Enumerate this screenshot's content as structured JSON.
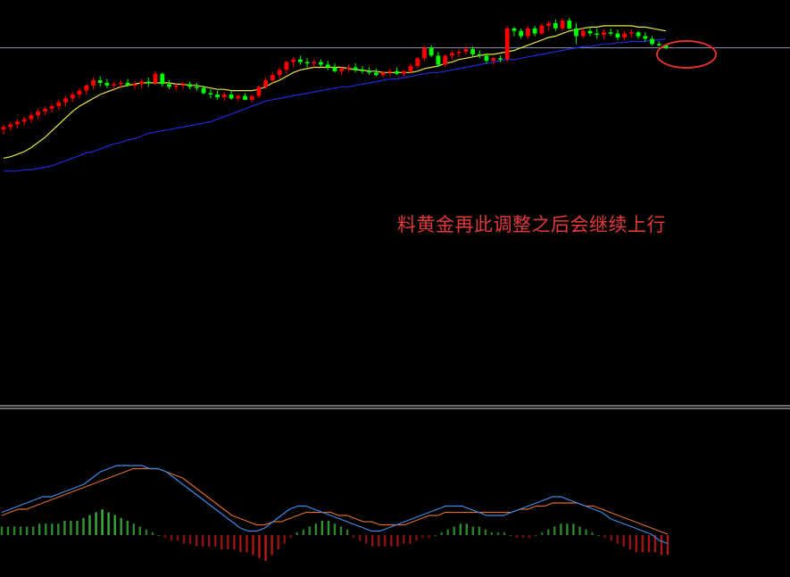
{
  "annotation": {
    "text": "料黄金再此调整之后会继续上行",
    "color": "#e23a3a"
  },
  "colors": {
    "background": "#000000",
    "up": "#ff0000",
    "down": "#00ff00",
    "ma_fast": "#e6e64c",
    "ma_slow": "#1f2bd6",
    "price_line": "#8c94b4",
    "divider": "#d8d8d8",
    "macd_dif": "#3d8ce8",
    "macd_dea": "#d86a2a",
    "hist_pos": "#3cb83c",
    "hist_neg": "#c01818",
    "highlight": "#e03030"
  },
  "chart_data": [
    {
      "type": "candlestick",
      "series": [
        {
          "name": "",
          "role": "candles",
          "ohlc": [
            [
              222,
              226,
              218,
              224
            ],
            [
              224,
              228,
              221,
              226
            ],
            [
              226,
              230,
              223,
              228
            ],
            [
              228,
              232,
              225,
              230
            ],
            [
              230,
              235,
              227,
              233
            ],
            [
              233,
              238,
              230,
              236
            ],
            [
              236,
              240,
              233,
              238
            ],
            [
              238,
              242,
              235,
              240
            ],
            [
              240,
              245,
              237,
              243
            ],
            [
              243,
              248,
              240,
              246
            ],
            [
              246,
              251,
              243,
              249
            ],
            [
              249,
              254,
              246,
              252
            ],
            [
              252,
              257,
              249,
              256
            ],
            [
              256,
              262,
              253,
              260
            ],
            [
              260,
              263,
              255,
              258
            ],
            [
              258,
              261,
              254,
              256
            ],
            [
              256,
              259,
              253,
              257
            ],
            [
              257,
              260,
              254,
              258
            ],
            [
              258,
              261,
              255,
              256
            ],
            [
              256,
              259,
              253,
              257
            ],
            [
              257,
              261,
              254,
              259
            ],
            [
              259,
              262,
              255,
              258
            ],
            [
              258,
              267,
              256,
              265
            ],
            [
              265,
              266,
              255,
              257
            ],
            [
              257,
              260,
              253,
              255
            ],
            [
              255,
              258,
              252,
              256
            ],
            [
              256,
              259,
              253,
              257
            ],
            [
              257,
              259,
              253,
              255
            ],
            [
              255,
              258,
              252,
              254
            ],
            [
              254,
              256,
              249,
              250
            ],
            [
              250,
              253,
              246,
              249
            ],
            [
              249,
              252,
              245,
              247
            ],
            [
              247,
              251,
              244,
              249
            ],
            [
              249,
              252,
              245,
              246
            ],
            [
              246,
              249,
              244,
              248
            ],
            [
              248,
              250,
              246,
              245
            ],
            [
              245,
              247,
              243,
              248
            ],
            [
              248,
              256,
              246,
              255
            ],
            [
              255,
              262,
              253,
              260
            ],
            [
              260,
              266,
              258,
              264
            ],
            [
              264,
              270,
              261,
              268
            ],
            [
              268,
              275,
              265,
              274
            ],
            [
              274,
              278,
              270,
              276
            ],
            [
              276,
              279,
              272,
              274
            ],
            [
              274,
              277,
              270,
              273
            ],
            [
              273,
              276,
              270,
              274
            ],
            [
              274,
              276,
              270,
              272
            ],
            [
              272,
              275,
              268,
              270
            ],
            [
              270,
              273,
              266,
              267
            ],
            [
              267,
              270,
              264,
              269
            ],
            [
              269,
              272,
              266,
              270
            ],
            [
              270,
              273,
              266,
              268
            ],
            [
              268,
              271,
              265,
              267
            ],
            [
              267,
              270,
              264,
              266
            ],
            [
              266,
              269,
              263,
              264
            ],
            [
              264,
              267,
              262,
              266
            ],
            [
              266,
              269,
              263,
              267
            ],
            [
              267,
              270,
              264,
              265
            ],
            [
              265,
              268,
              263,
              267
            ],
            [
              267,
              273,
              265,
              271
            ],
            [
              271,
              278,
              269,
              277
            ],
            [
              277,
              286,
              275,
              285
            ],
            [
              285,
              287,
              278,
              279
            ],
            [
              279,
              282,
              270,
              272
            ],
            [
              272,
              280,
              270,
              279
            ],
            [
              279,
              283,
              276,
              281
            ],
            [
              281,
              284,
              278,
              282
            ],
            [
              282,
              286,
              280,
              284
            ],
            [
              284,
              286,
              278,
              280
            ],
            [
              280,
              283,
              277,
              279
            ],
            [
              279,
              280,
              273,
              275
            ],
            [
              275,
              278,
              272,
              277
            ],
            [
              277,
              279,
              274,
              276
            ],
            [
              276,
              302,
              274,
              300
            ],
            [
              300,
              301,
              294,
              298
            ],
            [
              298,
              300,
              292,
              294
            ],
            [
              294,
              302,
              292,
              300
            ],
            [
              300,
              302,
              294,
              296
            ],
            [
              296,
              304,
              295,
              302
            ],
            [
              302,
              306,
              298,
              304
            ],
            [
              304,
              307,
              298,
              300
            ],
            [
              300,
              308,
              298,
              306
            ],
            [
              306,
              308,
              299,
              300
            ],
            [
              300,
              304,
              288,
              294
            ],
            [
              294,
              300,
              292,
              298
            ],
            [
              298,
              301,
              294,
              296
            ],
            [
              296,
              300,
              292,
              295
            ],
            [
              295,
              299,
              292,
              297
            ],
            [
              297,
              300,
              294,
              296
            ],
            [
              296,
              299,
              291,
              293
            ],
            [
              293,
              298,
              291,
              296
            ],
            [
              296,
              299,
              293,
              297
            ],
            [
              297,
              298,
              292,
              294
            ],
            [
              294,
              297,
              290,
              292
            ],
            [
              292,
              294,
              287,
              288
            ],
            [
              288,
              290,
              286,
              287
            ],
            [
              287,
              288,
              284,
              285
            ]
          ]
        },
        {
          "name": "",
          "role": "ma_fast",
          "values": [
            200,
            201,
            203,
            205,
            208,
            212,
            216,
            221,
            226,
            231,
            236,
            240,
            243,
            246,
            249,
            251,
            253,
            255,
            256,
            257,
            258,
            258,
            258,
            258,
            258,
            257,
            257,
            256,
            256,
            255,
            254,
            253,
            253,
            252,
            252,
            252,
            252,
            253,
            255,
            258,
            260,
            263,
            266,
            268,
            269,
            270,
            270,
            270,
            270,
            270,
            269,
            268,
            268,
            267,
            267,
            266,
            266,
            266,
            266,
            266,
            267,
            269,
            270,
            271,
            273,
            274,
            276,
            277,
            278,
            279,
            280,
            280,
            281,
            282,
            283,
            285,
            287,
            289,
            291,
            293,
            294,
            296,
            298,
            299,
            300,
            301,
            301,
            302,
            302,
            302,
            302,
            302,
            301,
            301,
            300,
            299,
            298
          ]
        },
        {
          "name": "",
          "role": "ma_slow",
          "values": [
            190,
            190,
            190,
            191,
            191,
            192,
            193,
            194,
            196,
            198,
            200,
            202,
            204,
            205,
            207,
            209,
            211,
            212,
            214,
            215,
            217,
            219,
            220,
            221,
            222,
            223,
            224,
            225,
            226,
            227,
            228,
            230,
            232,
            234,
            236,
            238,
            240,
            242,
            244,
            245,
            246,
            247,
            248,
            249,
            250,
            251,
            252,
            253,
            254,
            255,
            255,
            256,
            257,
            258,
            259,
            260,
            261,
            261,
            262,
            263,
            264,
            265,
            266,
            266,
            267,
            268,
            269,
            270,
            271,
            272,
            273,
            274,
            275,
            276,
            276,
            277,
            278,
            279,
            280,
            281,
            282,
            283,
            284,
            285,
            286,
            286,
            287,
            288,
            288,
            289,
            289,
            290,
            290,
            290,
            291,
            291,
            292
          ]
        }
      ],
      "price_line": 285,
      "ylim": [
        150,
        315
      ]
    },
    {
      "type": "bar",
      "series": [
        {
          "name": "",
          "role": "histogram",
          "values": [
            3,
            3,
            3,
            3,
            3,
            3,
            4,
            4,
            4,
            4,
            5,
            5,
            5,
            6,
            7,
            8,
            9,
            8,
            7,
            6,
            5,
            4,
            3,
            2,
            1,
            0,
            -1,
            -2,
            -2,
            -3,
            -3,
            -4,
            -4,
            -4,
            -4,
            -5,
            -5,
            -5,
            -6,
            -6,
            -7,
            -8,
            -9,
            -7,
            -5,
            -3,
            -1,
            1,
            2,
            3,
            4,
            5,
            5,
            4,
            3,
            2,
            -1,
            -2,
            -3,
            -4,
            -4,
            -4,
            -4,
            -4,
            -3,
            -3,
            -2,
            -1,
            -1,
            0,
            1,
            2,
            3,
            4,
            4,
            3,
            3,
            2,
            1,
            1,
            1,
            0,
            -1,
            -1,
            -1,
            0,
            1,
            2,
            3,
            4,
            4,
            4,
            3,
            2,
            1,
            0,
            -1,
            -2,
            -3,
            -4,
            -5,
            -6,
            -6,
            -6,
            -6,
            -7,
            -7
          ]
        },
        {
          "name": "",
          "role": "dif",
          "values": [
            3,
            4,
            5,
            6,
            7,
            8,
            8,
            9,
            10,
            11,
            12,
            14,
            16,
            17,
            18,
            18,
            18,
            18,
            17,
            17,
            16,
            14,
            12,
            10,
            8,
            6,
            4,
            2,
            0,
            -2,
            -3,
            -3,
            -2,
            0,
            2,
            4,
            5,
            5,
            4,
            3,
            2,
            1,
            0,
            -1,
            -2,
            -3,
            -3,
            -2,
            -1,
            0,
            1,
            2,
            3,
            4,
            5,
            5,
            5,
            4,
            3,
            2,
            2,
            2,
            3,
            4,
            5,
            6,
            7,
            8,
            8,
            7,
            6,
            5,
            4,
            3,
            1,
            0,
            -1,
            -2,
            -3,
            -4,
            -6,
            -7
          ]
        },
        {
          "name": "",
          "role": "dea",
          "values": [
            2,
            3,
            4,
            4,
            5,
            6,
            7,
            8,
            9,
            10,
            11,
            12,
            13,
            14,
            15,
            16,
            17,
            17,
            17,
            17,
            16,
            15,
            14,
            12,
            10,
            8,
            6,
            4,
            2,
            1,
            0,
            -1,
            -1,
            0,
            0,
            1,
            2,
            3,
            3,
            3,
            3,
            2,
            2,
            1,
            0,
            0,
            -1,
            -1,
            -1,
            -1,
            0,
            1,
            2,
            2,
            3,
            3,
            3,
            3,
            3,
            3,
            3,
            3,
            3,
            4,
            4,
            5,
            5,
            6,
            6,
            6,
            6,
            5,
            5,
            4,
            3,
            2,
            1,
            0,
            -1,
            -2,
            -3,
            -4
          ]
        }
      ],
      "ylim": [
        -10,
        20
      ]
    }
  ]
}
